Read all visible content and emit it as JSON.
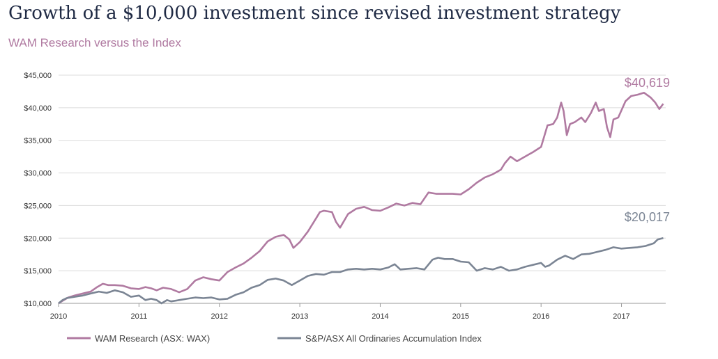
{
  "title": "Growth of a $10,000 investment since revised investment strategy",
  "subtitle": "WAM Research versus the Index",
  "colors": {
    "wam": "#b07aa1",
    "index": "#7b8594",
    "title": "#1f2a44",
    "grid": "#dcdcdc"
  },
  "chart_data": {
    "type": "line",
    "title": "Growth of a $10,000 investment since revised investment strategy",
    "subtitle": "WAM Research versus the Index",
    "xlabel": "",
    "ylabel": "",
    "xlim": [
      2010.0,
      2017.55
    ],
    "ylim": [
      10000,
      45000
    ],
    "x_ticks": [
      "2010",
      "2011",
      "2012",
      "2013",
      "2014",
      "2015",
      "2016",
      "2017"
    ],
    "y_ticks": [
      "$10,000",
      "$15,000",
      "$20,000",
      "$25,000",
      "$30,000",
      "$35,000",
      "$40,000",
      "$45,000"
    ],
    "grid": "horizontal",
    "legend_position": "bottom",
    "series": [
      {
        "name": "WAM Research (ASX: WAX)",
        "end_label": "$40,619",
        "points": [
          [
            2010.0,
            10000
          ],
          [
            2010.05,
            10400
          ],
          [
            2010.12,
            10900
          ],
          [
            2010.2,
            11200
          ],
          [
            2010.3,
            11500
          ],
          [
            2010.4,
            11800
          ],
          [
            2010.48,
            12500
          ],
          [
            2010.55,
            13000
          ],
          [
            2010.62,
            12800
          ],
          [
            2010.7,
            12800
          ],
          [
            2010.8,
            12700
          ],
          [
            2010.9,
            12300
          ],
          [
            2011.0,
            12200
          ],
          [
            2011.08,
            12500
          ],
          [
            2011.15,
            12300
          ],
          [
            2011.22,
            12000
          ],
          [
            2011.3,
            12400
          ],
          [
            2011.4,
            12200
          ],
          [
            2011.5,
            11700
          ],
          [
            2011.6,
            12200
          ],
          [
            2011.7,
            13500
          ],
          [
            2011.8,
            14000
          ],
          [
            2011.9,
            13700
          ],
          [
            2012.0,
            13500
          ],
          [
            2012.1,
            14800
          ],
          [
            2012.2,
            15500
          ],
          [
            2012.3,
            16100
          ],
          [
            2012.4,
            17000
          ],
          [
            2012.5,
            18000
          ],
          [
            2012.6,
            19500
          ],
          [
            2012.7,
            20200
          ],
          [
            2012.8,
            20500
          ],
          [
            2012.87,
            19800
          ],
          [
            2012.92,
            18500
          ],
          [
            2013.0,
            19400
          ],
          [
            2013.1,
            21000
          ],
          [
            2013.2,
            23000
          ],
          [
            2013.25,
            24000
          ],
          [
            2013.3,
            24200
          ],
          [
            2013.4,
            24000
          ],
          [
            2013.45,
            22500
          ],
          [
            2013.5,
            21600
          ],
          [
            2013.6,
            23700
          ],
          [
            2013.7,
            24500
          ],
          [
            2013.8,
            24800
          ],
          [
            2013.9,
            24300
          ],
          [
            2014.0,
            24200
          ],
          [
            2014.1,
            24700
          ],
          [
            2014.2,
            25300
          ],
          [
            2014.3,
            25000
          ],
          [
            2014.4,
            25400
          ],
          [
            2014.5,
            25200
          ],
          [
            2014.6,
            27000
          ],
          [
            2014.7,
            26800
          ],
          [
            2014.8,
            26800
          ],
          [
            2014.9,
            26800
          ],
          [
            2015.0,
            26700
          ],
          [
            2015.1,
            27500
          ],
          [
            2015.2,
            28500
          ],
          [
            2015.3,
            29300
          ],
          [
            2015.4,
            29800
          ],
          [
            2015.5,
            30500
          ],
          [
            2015.55,
            31500
          ],
          [
            2015.62,
            32500
          ],
          [
            2015.7,
            31800
          ],
          [
            2015.8,
            32500
          ],
          [
            2015.9,
            33200
          ],
          [
            2016.0,
            34000
          ],
          [
            2016.08,
            37300
          ],
          [
            2016.15,
            37500
          ],
          [
            2016.2,
            38500
          ],
          [
            2016.25,
            40800
          ],
          [
            2016.28,
            39500
          ],
          [
            2016.32,
            35800
          ],
          [
            2016.36,
            37500
          ],
          [
            2016.42,
            37800
          ],
          [
            2016.5,
            38500
          ],
          [
            2016.55,
            37800
          ],
          [
            2016.62,
            39200
          ],
          [
            2016.68,
            40800
          ],
          [
            2016.72,
            39500
          ],
          [
            2016.78,
            39800
          ],
          [
            2016.82,
            37000
          ],
          [
            2016.86,
            35500
          ],
          [
            2016.9,
            38200
          ],
          [
            2016.96,
            38500
          ],
          [
            2017.05,
            41000
          ],
          [
            2017.12,
            41800
          ],
          [
            2017.2,
            42000
          ],
          [
            2017.28,
            42300
          ],
          [
            2017.36,
            41600
          ],
          [
            2017.42,
            40800
          ],
          [
            2017.47,
            39800
          ],
          [
            2017.52,
            40619
          ]
        ]
      },
      {
        "name": "S&P/ASX All Ordinaries Accumulation Index",
        "end_label": "$20,017",
        "points": [
          [
            2010.0,
            10000
          ],
          [
            2010.05,
            10500
          ],
          [
            2010.1,
            10800
          ],
          [
            2010.2,
            11000
          ],
          [
            2010.3,
            11200
          ],
          [
            2010.4,
            11500
          ],
          [
            2010.5,
            11800
          ],
          [
            2010.6,
            11600
          ],
          [
            2010.7,
            12000
          ],
          [
            2010.8,
            11700
          ],
          [
            2010.9,
            11000
          ],
          [
            2011.0,
            11200
          ],
          [
            2011.08,
            10500
          ],
          [
            2011.15,
            10700
          ],
          [
            2011.22,
            10500
          ],
          [
            2011.28,
            10000
          ],
          [
            2011.35,
            10500
          ],
          [
            2011.4,
            10300
          ],
          [
            2011.5,
            10500
          ],
          [
            2011.6,
            10700
          ],
          [
            2011.7,
            10900
          ],
          [
            2011.8,
            10800
          ],
          [
            2011.9,
            10900
          ],
          [
            2012.0,
            10600
          ],
          [
            2012.1,
            10700
          ],
          [
            2012.2,
            11300
          ],
          [
            2012.3,
            11700
          ],
          [
            2012.4,
            12400
          ],
          [
            2012.5,
            12800
          ],
          [
            2012.6,
            13600
          ],
          [
            2012.7,
            13800
          ],
          [
            2012.8,
            13500
          ],
          [
            2012.9,
            12800
          ],
          [
            2013.0,
            13500
          ],
          [
            2013.1,
            14200
          ],
          [
            2013.2,
            14500
          ],
          [
            2013.3,
            14400
          ],
          [
            2013.4,
            14800
          ],
          [
            2013.5,
            14800
          ],
          [
            2013.6,
            15200
          ],
          [
            2013.7,
            15300
          ],
          [
            2013.8,
            15200
          ],
          [
            2013.9,
            15300
          ],
          [
            2014.0,
            15200
          ],
          [
            2014.1,
            15500
          ],
          [
            2014.18,
            16000
          ],
          [
            2014.25,
            15200
          ],
          [
            2014.35,
            15300
          ],
          [
            2014.45,
            15400
          ],
          [
            2014.55,
            15200
          ],
          [
            2014.65,
            16700
          ],
          [
            2014.72,
            17000
          ],
          [
            2014.8,
            16800
          ],
          [
            2014.9,
            16800
          ],
          [
            2015.0,
            16400
          ],
          [
            2015.1,
            16300
          ],
          [
            2015.2,
            15000
          ],
          [
            2015.3,
            15400
          ],
          [
            2015.4,
            15200
          ],
          [
            2015.5,
            15600
          ],
          [
            2015.6,
            15000
          ],
          [
            2015.7,
            15200
          ],
          [
            2015.8,
            15600
          ],
          [
            2015.9,
            15900
          ],
          [
            2016.0,
            16200
          ],
          [
            2016.05,
            15600
          ],
          [
            2016.1,
            15800
          ],
          [
            2016.2,
            16700
          ],
          [
            2016.3,
            17300
          ],
          [
            2016.4,
            16800
          ],
          [
            2016.5,
            17500
          ],
          [
            2016.6,
            17600
          ],
          [
            2016.7,
            17900
          ],
          [
            2016.8,
            18200
          ],
          [
            2016.9,
            18600
          ],
          [
            2017.0,
            18400
          ],
          [
            2017.1,
            18500
          ],
          [
            2017.2,
            18600
          ],
          [
            2017.3,
            18800
          ],
          [
            2017.4,
            19200
          ],
          [
            2017.45,
            19800
          ],
          [
            2017.52,
            20017
          ]
        ]
      }
    ]
  }
}
